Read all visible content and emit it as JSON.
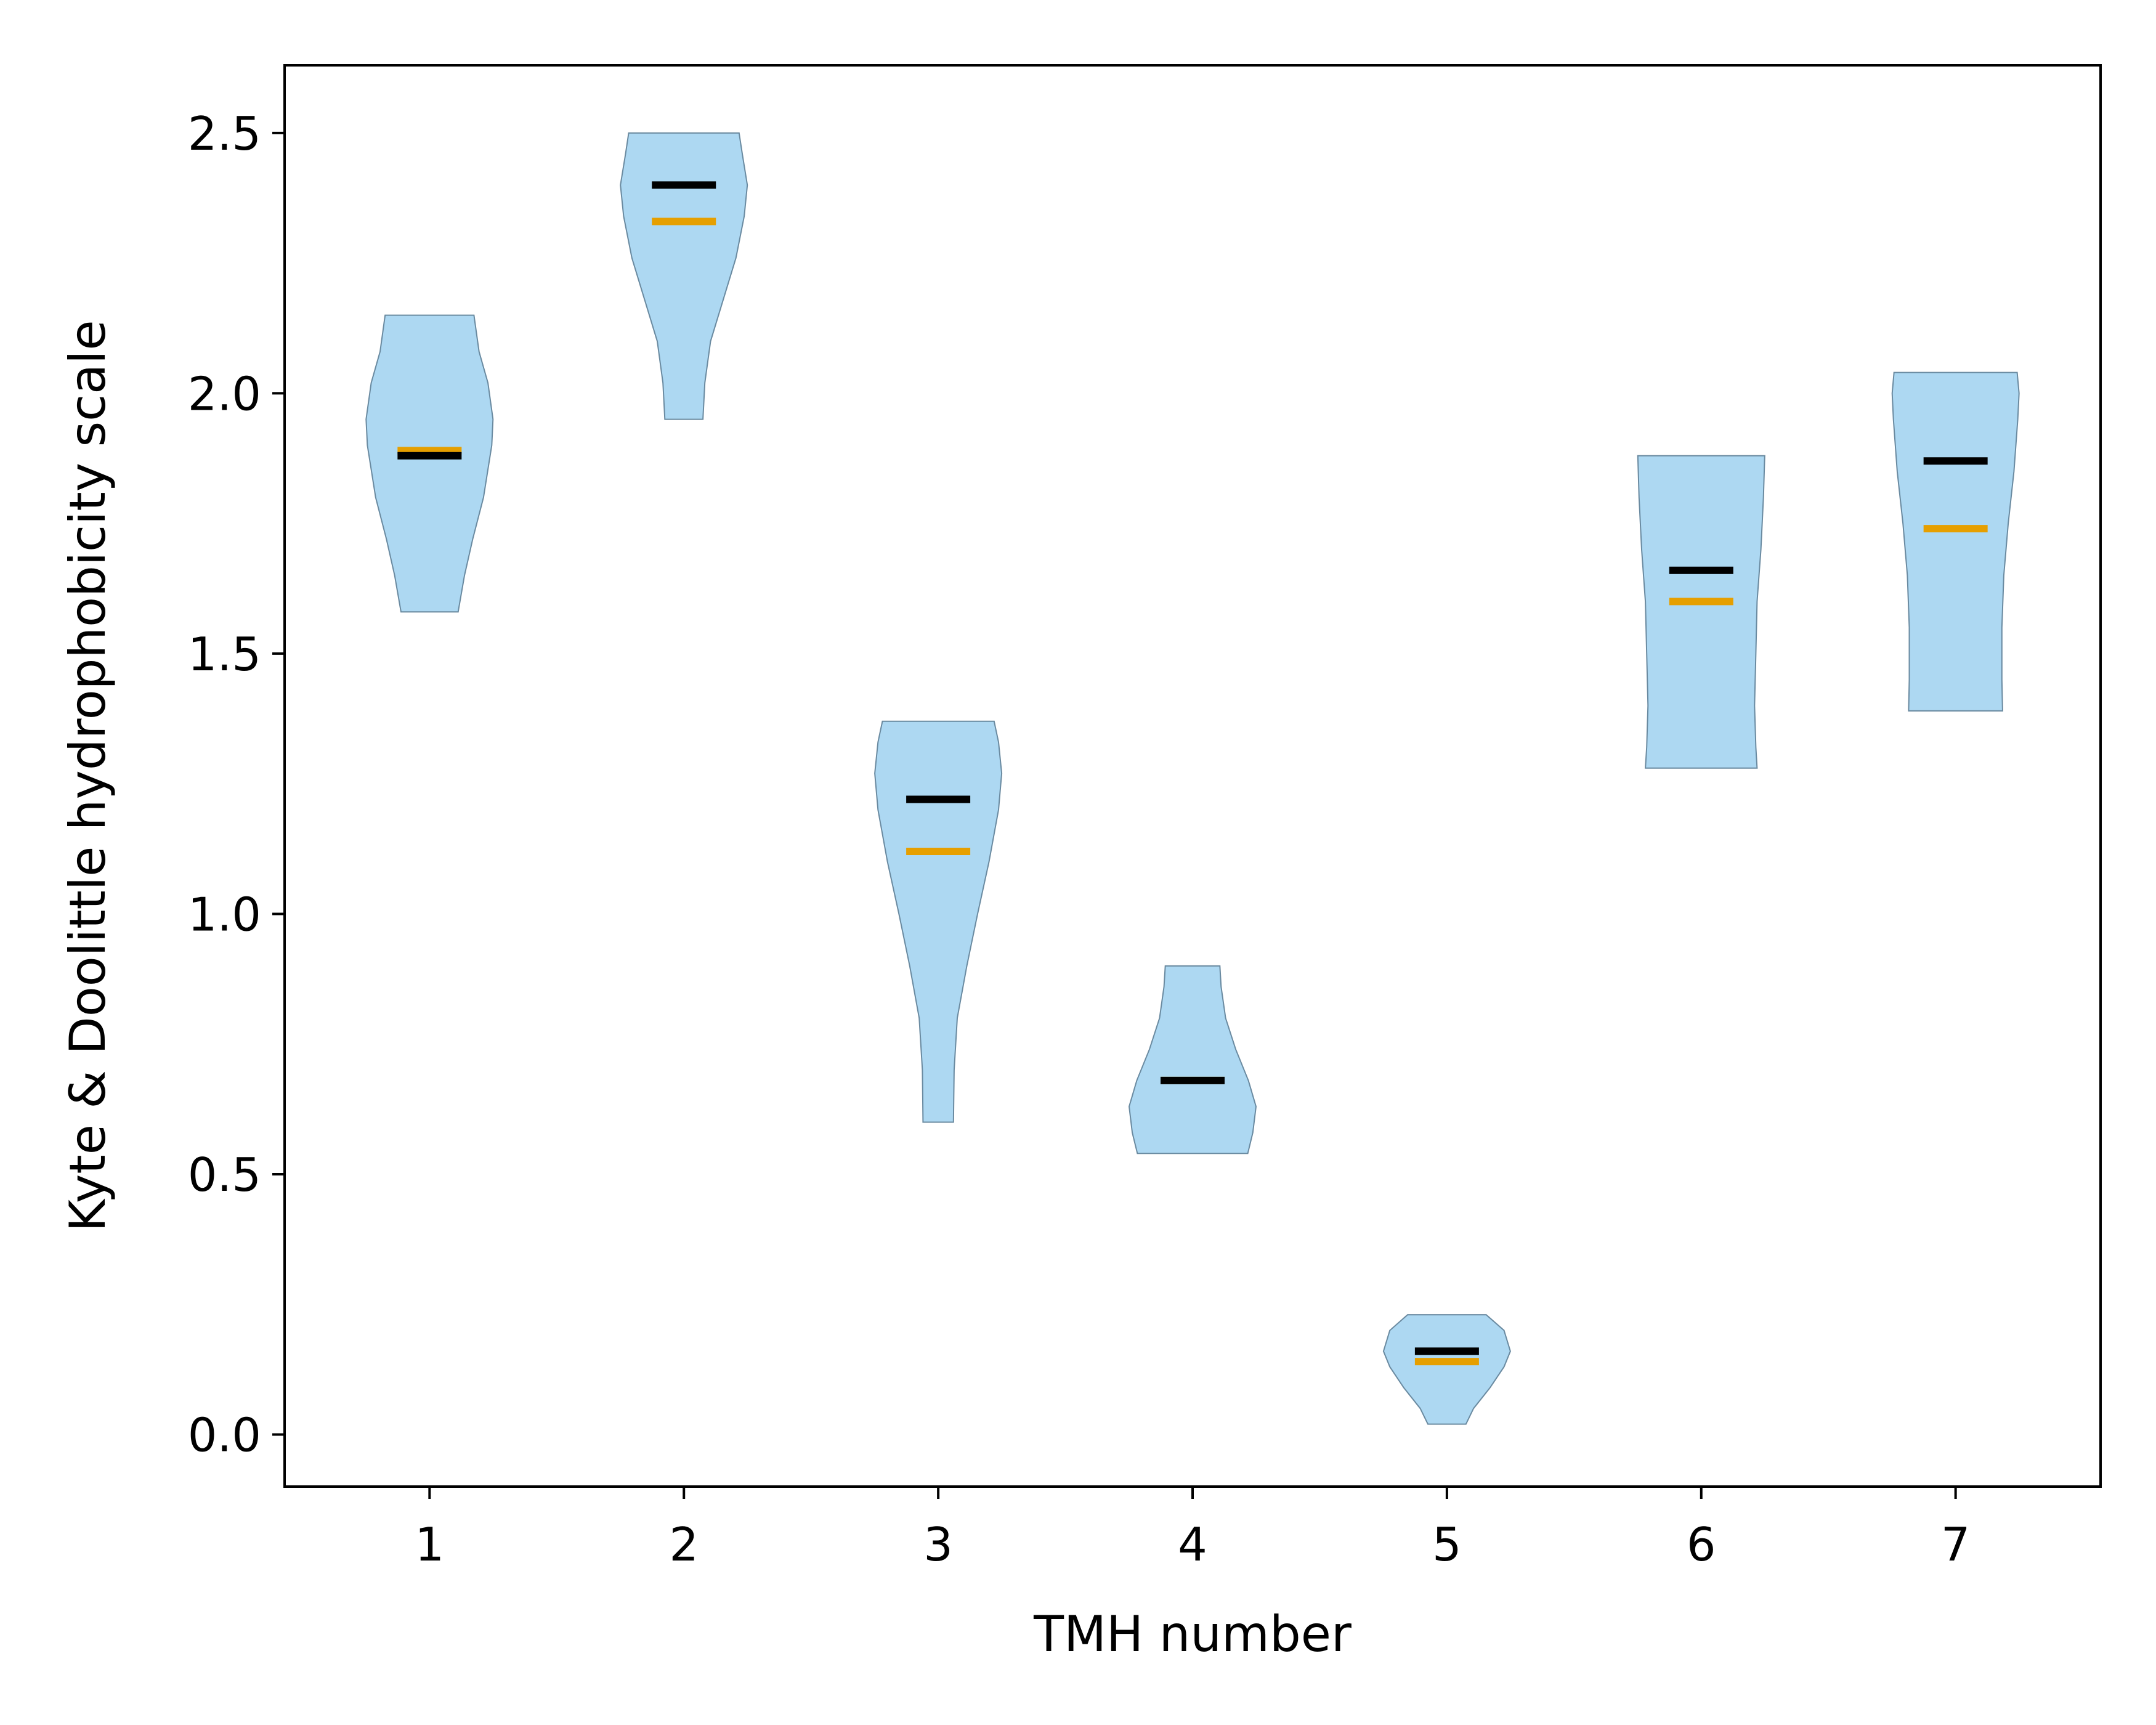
{
  "chart_data": {
    "type": "violin",
    "xlabel": "TMH number",
    "ylabel": "Kyte & Doolittle hydrophobicity scale",
    "categories": [
      "1",
      "2",
      "3",
      "4",
      "5",
      "6",
      "7"
    ],
    "ylim": [
      -0.1,
      2.63
    ],
    "yticks": [
      "0.0",
      "0.5",
      "1.0",
      "1.5",
      "2.0",
      "2.5"
    ],
    "grid": false,
    "series": [
      {
        "role": "mean",
        "color": "#000000"
      },
      {
        "role": "median",
        "color": "#e69f00"
      }
    ],
    "violins": [
      {
        "x": 1,
        "min": 1.58,
        "max": 2.15,
        "mean": 1.88,
        "median": 1.89,
        "profile": [
          [
            1.58,
            0.45
          ],
          [
            1.65,
            0.55
          ],
          [
            1.72,
            0.68
          ],
          [
            1.8,
            0.85
          ],
          [
            1.9,
            0.98
          ],
          [
            1.95,
            1.0
          ],
          [
            2.02,
            0.92
          ],
          [
            2.08,
            0.78
          ],
          [
            2.15,
            0.7
          ]
        ]
      },
      {
        "x": 2,
        "min": 1.95,
        "max": 2.5,
        "mean": 2.4,
        "median": 2.33,
        "profile": [
          [
            1.95,
            0.3
          ],
          [
            2.02,
            0.33
          ],
          [
            2.1,
            0.42
          ],
          [
            2.18,
            0.62
          ],
          [
            2.26,
            0.82
          ],
          [
            2.34,
            0.95
          ],
          [
            2.4,
            1.0
          ],
          [
            2.46,
            0.92
          ],
          [
            2.5,
            0.87
          ]
        ]
      },
      {
        "x": 3,
        "min": 0.6,
        "max": 1.37,
        "mean": 1.22,
        "median": 1.12,
        "profile": [
          [
            0.6,
            0.24
          ],
          [
            0.7,
            0.25
          ],
          [
            0.8,
            0.3
          ],
          [
            0.9,
            0.45
          ],
          [
            1.0,
            0.62
          ],
          [
            1.1,
            0.8
          ],
          [
            1.2,
            0.95
          ],
          [
            1.27,
            1.0
          ],
          [
            1.33,
            0.95
          ],
          [
            1.37,
            0.88
          ]
        ]
      },
      {
        "x": 4,
        "min": 0.54,
        "max": 0.9,
        "mean": 0.68,
        "median": 0.68,
        "profile": [
          [
            0.54,
            0.87
          ],
          [
            0.58,
            0.95
          ],
          [
            0.63,
            1.0
          ],
          [
            0.68,
            0.88
          ],
          [
            0.74,
            0.68
          ],
          [
            0.8,
            0.52
          ],
          [
            0.86,
            0.45
          ],
          [
            0.9,
            0.43
          ]
        ]
      },
      {
        "x": 5,
        "min": 0.02,
        "max": 0.23,
        "mean": 0.16,
        "median": 0.14,
        "profile": [
          [
            0.02,
            0.3
          ],
          [
            0.05,
            0.42
          ],
          [
            0.09,
            0.68
          ],
          [
            0.13,
            0.9
          ],
          [
            0.16,
            1.0
          ],
          [
            0.2,
            0.9
          ],
          [
            0.23,
            0.62
          ]
        ]
      },
      {
        "x": 6,
        "min": 1.28,
        "max": 1.88,
        "mean": 1.66,
        "median": 1.6,
        "profile": [
          [
            1.28,
            0.88
          ],
          [
            1.32,
            0.86
          ],
          [
            1.4,
            0.84
          ],
          [
            1.5,
            0.86
          ],
          [
            1.6,
            0.88
          ],
          [
            1.7,
            0.94
          ],
          [
            1.8,
            0.98
          ],
          [
            1.88,
            1.0
          ]
        ]
      },
      {
        "x": 7,
        "min": 1.39,
        "max": 2.04,
        "mean": 1.87,
        "median": 1.74,
        "profile": [
          [
            1.39,
            0.74
          ],
          [
            1.45,
            0.73
          ],
          [
            1.55,
            0.73
          ],
          [
            1.65,
            0.76
          ],
          [
            1.75,
            0.83
          ],
          [
            1.85,
            0.92
          ],
          [
            1.95,
            0.98
          ],
          [
            2.0,
            1.0
          ],
          [
            2.04,
            0.97
          ]
        ]
      }
    ],
    "colors": {
      "violin_fill": "#add8f2",
      "violin_edge": "#6a8aa0",
      "mean_line": "#000000",
      "median_line": "#e69f00",
      "axis": "#000000"
    }
  }
}
